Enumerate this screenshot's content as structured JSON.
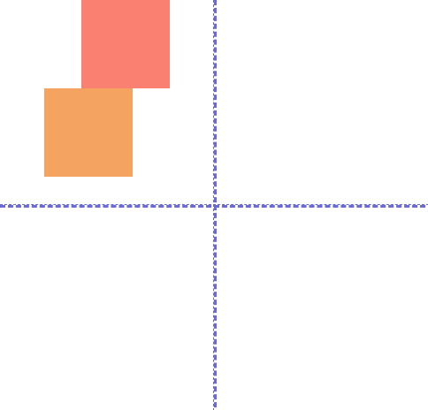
{
  "canvas": {
    "background": "#ffffff"
  },
  "guides": {
    "color": "#6a6ad8",
    "style": "dashed"
  },
  "shapes": [
    {
      "name": "salmon-square",
      "color": "#fa8072"
    },
    {
      "name": "sandy-orange-square",
      "color": "#f4a460"
    }
  ]
}
